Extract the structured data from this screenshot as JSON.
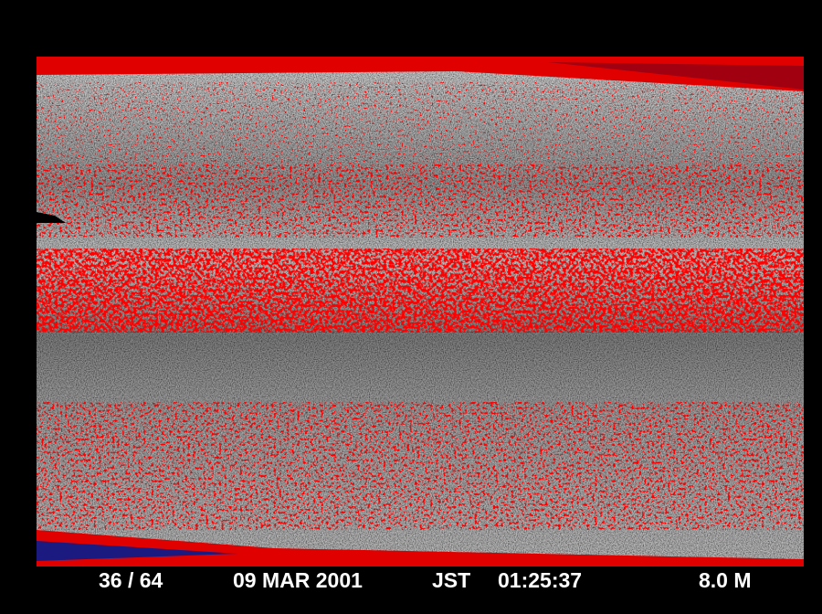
{
  "frame": "36 / 64",
  "date": "09 MAR 2001",
  "timezone": "JST",
  "time": "01:25:37",
  "range": "8.0 M"
}
